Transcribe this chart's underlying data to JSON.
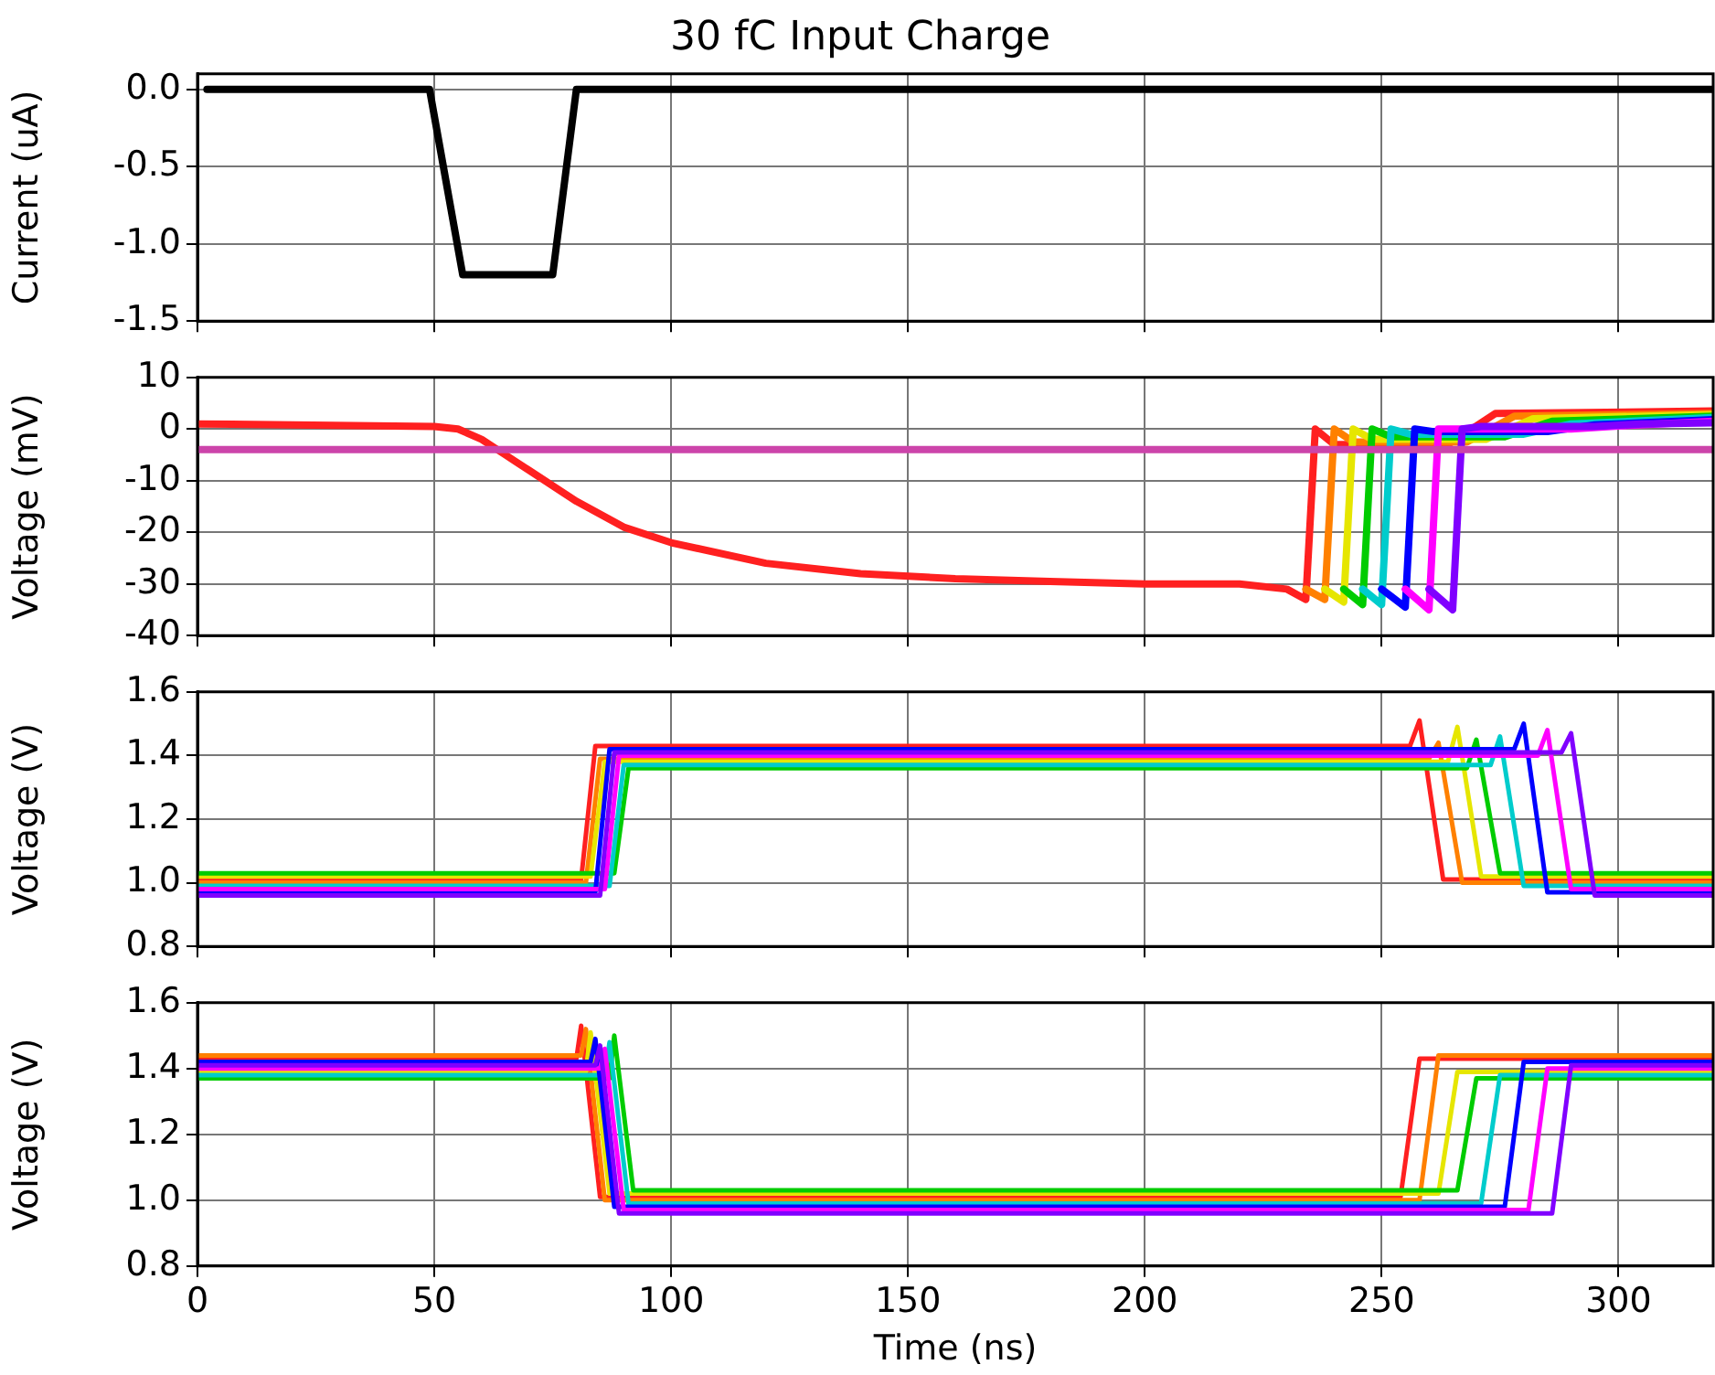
{
  "chart_data": [
    {
      "type": "line",
      "title": "30 fC Input Charge",
      "ylabel": "Current (uA)",
      "xlim": [
        0,
        320
      ],
      "xticks": [
        0,
        50,
        100,
        150,
        200,
        250,
        300
      ],
      "ylim": [
        -1.5,
        0.1
      ],
      "yticks": [
        {
          "value": 0,
          "label": "0.0"
        },
        -0.5,
        {
          "value": -1,
          "label": "-1.0"
        },
        -1.5
      ],
      "tick_labels": "y",
      "grid": true,
      "marker": "none",
      "line_style": "solid",
      "series": [
        {
          "color": "#000000",
          "x": [
            2,
            49,
            56,
            75,
            80,
            320
          ],
          "values": [
            0,
            0,
            -1.2,
            -1.2,
            0,
            0
          ]
        }
      ]
    },
    {
      "type": "line",
      "ylabel": "Voltage (mV)",
      "xlim": [
        0,
        320
      ],
      "xticks": [
        0,
        50,
        100,
        150,
        200,
        250,
        300
      ],
      "ylim": [
        -40,
        10
      ],
      "yticks": [
        10,
        0,
        -10,
        -20,
        -30,
        -40
      ],
      "tick_labels": "y",
      "grid": true,
      "marker": "none",
      "line_style": "solid",
      "series": [
        {
          "color": "#cc44aa",
          "x": [
            0,
            320
          ],
          "values": [
            -4,
            -4
          ]
        },
        {
          "color": "#8000ff",
          "x": [
            260,
            265,
            267,
            271,
            295,
            305,
            320
          ],
          "values": [
            -31,
            -35,
            0,
            0.5,
            0.5,
            1,
            1.2
          ]
        },
        {
          "color": "#ff00ff",
          "x": [
            255,
            260,
            262,
            266,
            290,
            300,
            320
          ],
          "values": [
            -31,
            -35,
            0,
            0,
            0,
            0.6,
            1.5
          ]
        },
        {
          "color": "#0000ff",
          "x": [
            250,
            255,
            257,
            261,
            285,
            295,
            320
          ],
          "values": [
            -31,
            -34.5,
            0,
            -0.5,
            -0.5,
            0.8,
            1.8
          ]
        },
        {
          "color": "#00cccc",
          "x": [
            246,
            250,
            252,
            256,
            280,
            290,
            320
          ],
          "values": [
            -31,
            -34,
            0,
            -1,
            -1,
            1,
            2.2
          ]
        },
        {
          "color": "#00cc00",
          "x": [
            242,
            246,
            248,
            252,
            276,
            286,
            320
          ],
          "values": [
            -31,
            -34,
            0,
            -1.5,
            -1.5,
            1.5,
            2.5
          ]
        },
        {
          "color": "#e6e600",
          "x": [
            238,
            242,
            244,
            248,
            272,
            282,
            320
          ],
          "values": [
            -31,
            -33.5,
            0,
            -2,
            -2,
            2,
            2.8
          ]
        },
        {
          "color": "#ff8000",
          "x": [
            234,
            238,
            240,
            244,
            268,
            278,
            320
          ],
          "values": [
            -31,
            -33,
            0,
            -2.5,
            -2.5,
            2.5,
            3
          ]
        },
        {
          "color": "#ff2020",
          "x": [
            0,
            50,
            55,
            60,
            65,
            70,
            80,
            90,
            100,
            120,
            140,
            160,
            180,
            200,
            220,
            230,
            234,
            236,
            240,
            264,
            274,
            320
          ],
          "values": [
            1,
            0.5,
            0,
            -2,
            -5,
            -8,
            -14,
            -19,
            -22,
            -26,
            -28,
            -29,
            -29.5,
            -30,
            -30,
            -31,
            -33,
            0,
            -3,
            -3,
            3,
            3.5
          ]
        }
      ]
    },
    {
      "type": "line",
      "ylabel": "Voltage (V)",
      "xlim": [
        0,
        320
      ],
      "xticks": [
        0,
        50,
        100,
        150,
        200,
        250,
        300
      ],
      "ylim": [
        0.8,
        1.6
      ],
      "yticks": [
        0.8,
        {
          "value": 1,
          "label": "1.0"
        },
        1.2,
        1.4,
        1.6
      ],
      "tick_labels": "y",
      "grid": true,
      "marker": "none",
      "line_style": "solid",
      "series": [
        {
          "color": "#8000ff",
          "x": [
            0,
            85,
            88,
            288,
            290,
            295,
            320
          ],
          "values": [
            0.96,
            0.96,
            1.41,
            1.41,
            1.47,
            0.96,
            0.96
          ]
        },
        {
          "color": "#ff00ff",
          "x": [
            0,
            86,
            89,
            283,
            285,
            290,
            320
          ],
          "values": [
            0.98,
            0.98,
            1.4,
            1.4,
            1.48,
            0.98,
            0.98
          ]
        },
        {
          "color": "#0000ff",
          "x": [
            0,
            84,
            87,
            278,
            280,
            285,
            320
          ],
          "values": [
            0.97,
            0.97,
            1.42,
            1.42,
            1.5,
            0.97,
            0.97
          ]
        },
        {
          "color": "#00cccc",
          "x": [
            0,
            87,
            90,
            273,
            275,
            280,
            320
          ],
          "values": [
            0.99,
            0.99,
            1.37,
            1.37,
            1.46,
            0.99,
            0.99
          ]
        },
        {
          "color": "#00cc00",
          "x": [
            0,
            88,
            91,
            268,
            270,
            275,
            320
          ],
          "values": [
            1.03,
            1.03,
            1.36,
            1.36,
            1.45,
            1.03,
            1.03
          ]
        },
        {
          "color": "#e6e600",
          "x": [
            0,
            83,
            86,
            264,
            266,
            271,
            320
          ],
          "values": [
            1.02,
            1.02,
            1.38,
            1.38,
            1.49,
            1.02,
            1.02
          ]
        },
        {
          "color": "#ff8000",
          "x": [
            0,
            82,
            85,
            260,
            262,
            267,
            320
          ],
          "values": [
            1,
            1,
            1.39,
            1.39,
            1.44,
            1,
            1
          ]
        },
        {
          "color": "#ff2020",
          "x": [
            0,
            81,
            84,
            256,
            258,
            263,
            320
          ],
          "values": [
            1.01,
            1.01,
            1.43,
            1.43,
            1.51,
            1.01,
            1.01
          ]
        }
      ]
    },
    {
      "type": "line",
      "xlabel": "Time (ns)",
      "ylabel": "Voltage (V)",
      "xlim": [
        0,
        320
      ],
      "xticks": [
        0,
        50,
        100,
        150,
        200,
        250,
        300
      ],
      "ylim": [
        0.8,
        1.6
      ],
      "yticks": [
        0.8,
        {
          "value": 1,
          "label": "1.0"
        },
        1.2,
        1.4,
        1.6
      ],
      "grid": true,
      "marker": "none",
      "line_style": "solid",
      "series": [
        {
          "color": "#8000ff",
          "x": [
            0,
            84,
            85,
            89,
            286,
            290,
            320
          ],
          "values": [
            1.41,
            1.41,
            1.47,
            0.96,
            0.96,
            1.41,
            1.41
          ]
        },
        {
          "color": "#ff00ff",
          "x": [
            0,
            85,
            86,
            90,
            281,
            285,
            320
          ],
          "values": [
            1.4,
            1.4,
            1.46,
            0.97,
            0.97,
            1.4,
            1.4
          ]
        },
        {
          "color": "#0000ff",
          "x": [
            0,
            83,
            84,
            88,
            276,
            280,
            320
          ],
          "values": [
            1.42,
            1.42,
            1.49,
            0.98,
            0.98,
            1.42,
            1.42
          ]
        },
        {
          "color": "#00cccc",
          "x": [
            0,
            86,
            87,
            91,
            271,
            275,
            320
          ],
          "values": [
            1.38,
            1.38,
            1.48,
            0.99,
            0.99,
            1.38,
            1.38
          ]
        },
        {
          "color": "#00cc00",
          "x": [
            0,
            87,
            88,
            92,
            266,
            270,
            320
          ],
          "values": [
            1.37,
            1.37,
            1.5,
            1.03,
            1.03,
            1.37,
            1.37
          ]
        },
        {
          "color": "#e6e600",
          "x": [
            0,
            82,
            83,
            87,
            262,
            266,
            320
          ],
          "values": [
            1.39,
            1.39,
            1.51,
            1.02,
            1.02,
            1.39,
            1.39
          ]
        },
        {
          "color": "#ff8000",
          "x": [
            0,
            81,
            82,
            86,
            258,
            262,
            320
          ],
          "values": [
            1.44,
            1.44,
            1.52,
            1,
            1,
            1.44,
            1.44
          ]
        },
        {
          "color": "#ff2020",
          "x": [
            0,
            80,
            81,
            85,
            254,
            258,
            320
          ],
          "values": [
            1.43,
            1.43,
            1.53,
            1.01,
            1.01,
            1.43,
            1.43
          ]
        }
      ]
    }
  ]
}
